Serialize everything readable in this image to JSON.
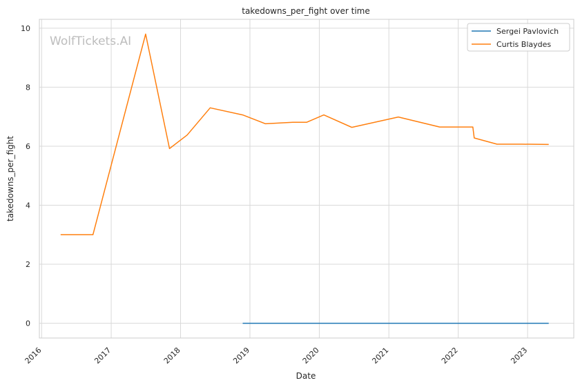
{
  "chart_data": {
    "type": "line",
    "title": "takedowns_per_fight over time",
    "xlabel": "Date",
    "ylabel": "takedowns_per_fight",
    "watermark": "WolfTickets.AI",
    "x_ticks": [
      "2016",
      "2017",
      "2018",
      "2019",
      "2020",
      "2021",
      "2022",
      "2023"
    ],
    "y_ticks": [
      "0",
      "2",
      "4",
      "6",
      "8",
      "10"
    ],
    "xlim": [
      "2015-12-20",
      "2023-09-01"
    ],
    "ylim": [
      -0.5,
      10.3
    ],
    "grid": true,
    "legend_position": "top-right",
    "series": [
      {
        "name": "Sergei Pavlovich",
        "color": "#1f77b4",
        "points": [
          {
            "x": "2018-11-24",
            "y": 0
          },
          {
            "x": "2023-04-22",
            "y": 0
          }
        ]
      },
      {
        "name": "Curtis Blaydes",
        "color": "#ff7f0e",
        "points": [
          {
            "x": "2016-04-10",
            "y": 3.0
          },
          {
            "x": "2016-09-27",
            "y": 3.0
          },
          {
            "x": "2017-07-01",
            "y": 9.8
          },
          {
            "x": "2017-11-04",
            "y": 5.92
          },
          {
            "x": "2018-02-05",
            "y": 6.38
          },
          {
            "x": "2018-06-06",
            "y": 7.3
          },
          {
            "x": "2018-11-24",
            "y": 7.06
          },
          {
            "x": "2019-03-24",
            "y": 6.76
          },
          {
            "x": "2019-08-15",
            "y": 6.81
          },
          {
            "x": "2019-10-26",
            "y": 6.81
          },
          {
            "x": "2020-01-25",
            "y": 7.06
          },
          {
            "x": "2020-06-20",
            "y": 6.64
          },
          {
            "x": "2021-02-20",
            "y": 6.99
          },
          {
            "x": "2021-09-25",
            "y": 6.65
          },
          {
            "x": "2022-03-19",
            "y": 6.65
          },
          {
            "x": "2022-03-26",
            "y": 6.28
          },
          {
            "x": "2022-07-24",
            "y": 6.07
          },
          {
            "x": "2022-12-03",
            "y": 6.07
          },
          {
            "x": "2023-04-22",
            "y": 6.06
          }
        ]
      }
    ]
  }
}
